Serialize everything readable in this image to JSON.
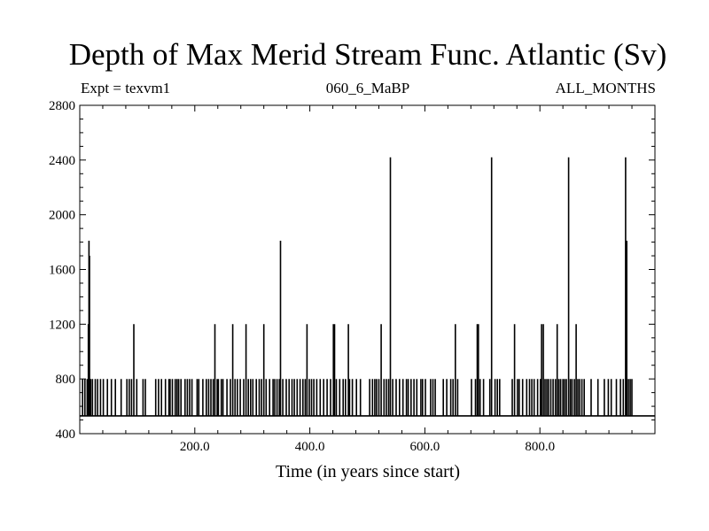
{
  "chart_data": {
    "type": "line",
    "title": "Depth of Max Merid Stream Func. Atlantic (Sv)",
    "subtitle_left": "Expt = texvm1",
    "subtitle_center": "060_6_MaBP",
    "subtitle_right": "ALL_MONTHS",
    "xlabel": "Time (in years since start)",
    "ylabel": "",
    "xlim": [
      0,
      1000
    ],
    "ylim": [
      400,
      2800
    ],
    "xticks_labeled": [
      200,
      400,
      600,
      800
    ],
    "xtick_labels": [
      "200.0",
      "400.0",
      "600.0",
      "800.0"
    ],
    "yticks": [
      400,
      800,
      1200,
      1600,
      2000,
      2400,
      2800
    ],
    "ytick_labels": [
      "400",
      "800",
      "1200",
      "1600",
      "2000",
      "2400",
      "2800"
    ],
    "baseline_value": 530,
    "line_color": "#000000",
    "series": [
      {
        "spikes": [
          [
            5,
            800
          ],
          [
            9,
            800
          ],
          [
            13,
            800
          ],
          [
            15,
            1200
          ],
          [
            16,
            1810
          ],
          [
            17,
            1700
          ],
          [
            19,
            800
          ],
          [
            22,
            800
          ],
          [
            27,
            800
          ],
          [
            31,
            800
          ],
          [
            36,
            800
          ],
          [
            41,
            800
          ],
          [
            48,
            800
          ],
          [
            55,
            800
          ],
          [
            62,
            800
          ],
          [
            72,
            800
          ],
          [
            82,
            800
          ],
          [
            86,
            800
          ],
          [
            90,
            800
          ],
          [
            94,
            1200
          ],
          [
            99,
            800
          ],
          [
            110,
            800
          ],
          [
            114,
            800
          ],
          [
            132,
            800
          ],
          [
            137,
            800
          ],
          [
            142,
            800
          ],
          [
            149,
            800
          ],
          [
            155,
            800
          ],
          [
            157,
            800
          ],
          [
            161,
            800
          ],
          [
            166,
            800
          ],
          [
            169,
            800
          ],
          [
            172,
            800
          ],
          [
            176,
            800
          ],
          [
            183,
            800
          ],
          [
            187,
            800
          ],
          [
            191,
            800
          ],
          [
            195,
            800
          ],
          [
            204,
            800
          ],
          [
            207,
            800
          ],
          [
            214,
            800
          ],
          [
            220,
            800
          ],
          [
            224,
            800
          ],
          [
            228,
            800
          ],
          [
            232,
            800
          ],
          [
            235,
            1200
          ],
          [
            239,
            800
          ],
          [
            241,
            800
          ],
          [
            246,
            800
          ],
          [
            249,
            800
          ],
          [
            256,
            800
          ],
          [
            262,
            800
          ],
          [
            266,
            1200
          ],
          [
            270,
            800
          ],
          [
            274,
            800
          ],
          [
            279,
            800
          ],
          [
            285,
            800
          ],
          [
            289,
            1200
          ],
          [
            293,
            800
          ],
          [
            297,
            800
          ],
          [
            301,
            800
          ],
          [
            307,
            800
          ],
          [
            312,
            800
          ],
          [
            316,
            800
          ],
          [
            320,
            1200
          ],
          [
            324,
            800
          ],
          [
            330,
            800
          ],
          [
            336,
            800
          ],
          [
            339,
            800
          ],
          [
            343,
            800
          ],
          [
            347,
            800
          ],
          [
            349,
            1810
          ],
          [
            353,
            800
          ],
          [
            359,
            800
          ],
          [
            364,
            800
          ],
          [
            369,
            800
          ],
          [
            373,
            800
          ],
          [
            378,
            800
          ],
          [
            383,
            800
          ],
          [
            388,
            800
          ],
          [
            392,
            800
          ],
          [
            395,
            1200
          ],
          [
            399,
            800
          ],
          [
            403,
            800
          ],
          [
            407,
            800
          ],
          [
            412,
            800
          ],
          [
            418,
            800
          ],
          [
            424,
            800
          ],
          [
            430,
            800
          ],
          [
            436,
            800
          ],
          [
            441,
            1200
          ],
          [
            443,
            1200
          ],
          [
            446,
            800
          ],
          [
            452,
            800
          ],
          [
            458,
            800
          ],
          [
            462,
            800
          ],
          [
            467,
            1200
          ],
          [
            469,
            800
          ],
          [
            474,
            800
          ],
          [
            481,
            800
          ],
          [
            488,
            800
          ],
          [
            504,
            800
          ],
          [
            509,
            800
          ],
          [
            513,
            800
          ],
          [
            516,
            800
          ],
          [
            520,
            800
          ],
          [
            524,
            1200
          ],
          [
            529,
            800
          ],
          [
            533,
            800
          ],
          [
            537,
            800
          ],
          [
            540,
            2420
          ],
          [
            544,
            800
          ],
          [
            550,
            800
          ],
          [
            556,
            800
          ],
          [
            562,
            800
          ],
          [
            568,
            800
          ],
          [
            571,
            800
          ],
          [
            576,
            800
          ],
          [
            581,
            800
          ],
          [
            586,
            800
          ],
          [
            593,
            800
          ],
          [
            596,
            800
          ],
          [
            601,
            800
          ],
          [
            610,
            800
          ],
          [
            614,
            800
          ],
          [
            618,
            800
          ],
          [
            632,
            800
          ],
          [
            638,
            800
          ],
          [
            645,
            800
          ],
          [
            649,
            800
          ],
          [
            653,
            1200
          ],
          [
            657,
            800
          ],
          [
            681,
            800
          ],
          [
            688,
            800
          ],
          [
            691,
            1200
          ],
          [
            693,
            1200
          ],
          [
            696,
            800
          ],
          [
            702,
            800
          ],
          [
            713,
            800
          ],
          [
            716,
            2420
          ],
          [
            722,
            800
          ],
          [
            726,
            800
          ],
          [
            730,
            800
          ],
          [
            752,
            800
          ],
          [
            756,
            1200
          ],
          [
            761,
            800
          ],
          [
            764,
            800
          ],
          [
            770,
            800
          ],
          [
            777,
            800
          ],
          [
            782,
            800
          ],
          [
            786,
            800
          ],
          [
            790,
            800
          ],
          [
            796,
            800
          ],
          [
            801,
            800
          ],
          [
            803,
            1200
          ],
          [
            806,
            1200
          ],
          [
            809,
            800
          ],
          [
            812,
            800
          ],
          [
            815,
            800
          ],
          [
            819,
            800
          ],
          [
            823,
            800
          ],
          [
            827,
            800
          ],
          [
            830,
            1200
          ],
          [
            833,
            800
          ],
          [
            836,
            800
          ],
          [
            840,
            800
          ],
          [
            843,
            800
          ],
          [
            846,
            800
          ],
          [
            850,
            2420
          ],
          [
            853,
            800
          ],
          [
            856,
            800
          ],
          [
            860,
            800
          ],
          [
            863,
            1200
          ],
          [
            866,
            800
          ],
          [
            869,
            800
          ],
          [
            873,
            800
          ],
          [
            877,
            800
          ],
          [
            889,
            800
          ],
          [
            901,
            800
          ],
          [
            912,
            800
          ],
          [
            919,
            800
          ],
          [
            924,
            800
          ],
          [
            933,
            800
          ],
          [
            940,
            800
          ],
          [
            945,
            800
          ],
          [
            949,
            2420
          ],
          [
            951,
            1810
          ],
          [
            954,
            800
          ],
          [
            957,
            800
          ],
          [
            960,
            800
          ]
        ]
      }
    ]
  }
}
